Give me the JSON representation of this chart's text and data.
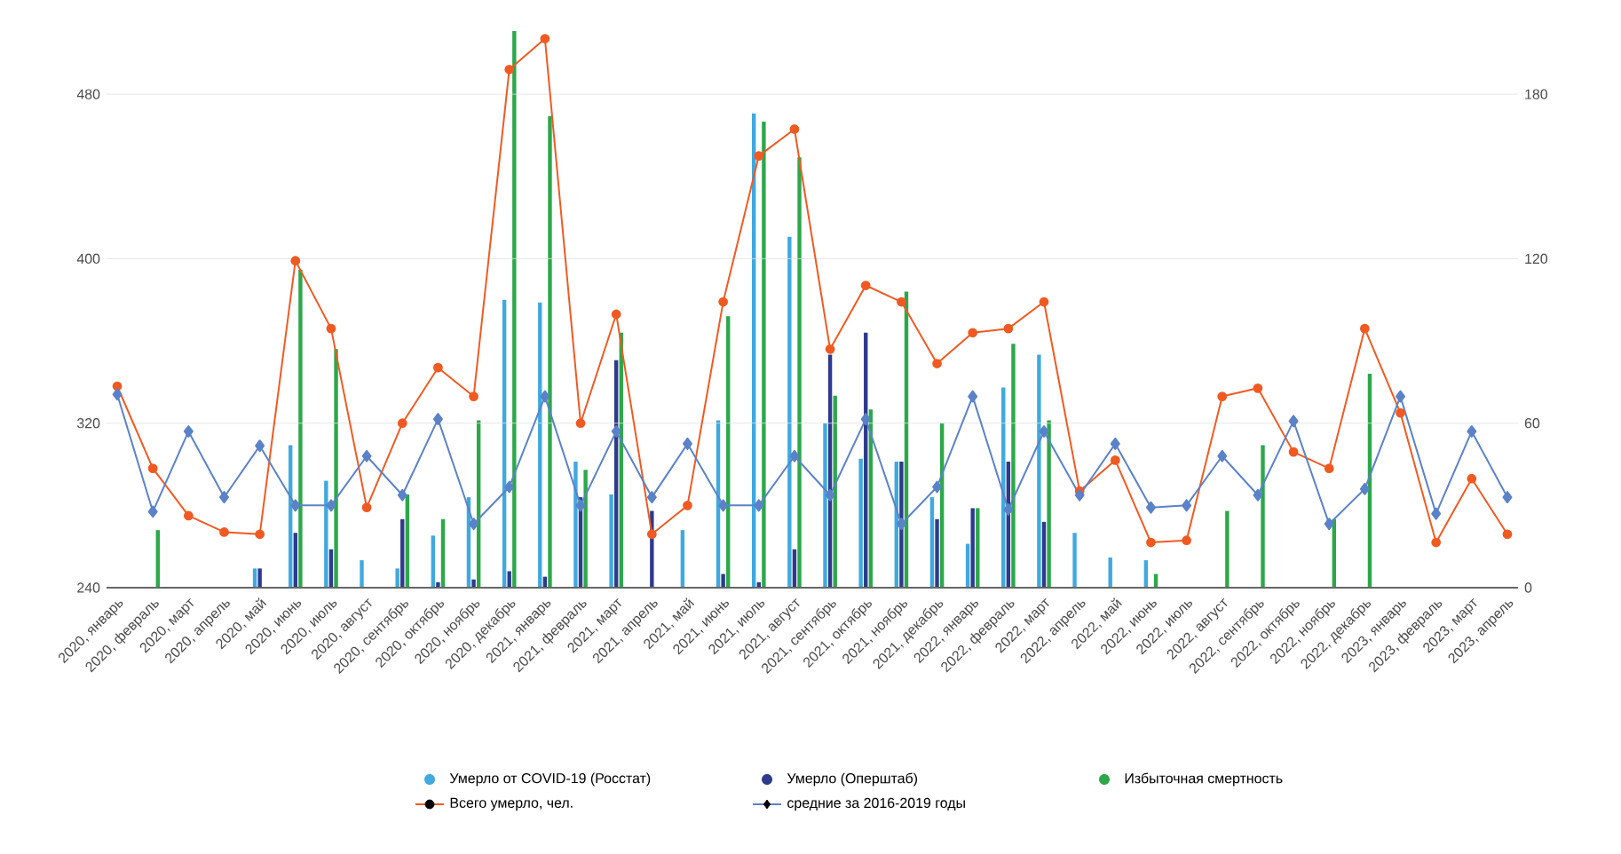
{
  "chart_data": {
    "type": "bar",
    "categories": [
      "2020, январь",
      "2020, февраль",
      "2020, март",
      "2020, апрель",
      "2020, май",
      "2020, июнь",
      "2020, июль",
      "2020, август",
      "2020, сентябрь",
      "2020, октябрь",
      "2020, ноябрь",
      "2020, декабрь",
      "2021, январь",
      "2021, февраль",
      "2021, март",
      "2021, апрель",
      "2021, май",
      "2021, июнь",
      "2021, июль",
      "2021, август",
      "2021, сентябрь",
      "2021, октябрь",
      "2021, ноябрь",
      "2021, декабрь",
      "2022, январь",
      "2022, февраль",
      "2022, март",
      "2022, апрель",
      "2022, май",
      "2022, июнь",
      "2022, июль",
      "2022, август",
      "2022, сентябрь",
      "2022, октябрь",
      "2022, ноябрь",
      "2022, декабрь",
      "2023, январь",
      "2023, февраль",
      "2023, март",
      "2023, апрель"
    ],
    "series": [
      {
        "name": "Умерло от COVID-19 (Росстат)",
        "axis": "y2",
        "color": "#3fa9e0",
        "values": [
          null,
          null,
          null,
          null,
          7,
          52,
          39,
          10,
          7,
          19,
          33,
          105,
          104,
          46,
          34,
          null,
          21,
          61,
          173,
          128,
          60,
          47,
          46,
          33,
          16,
          73,
          85,
          20,
          11,
          10,
          null,
          null,
          null,
          null,
          null,
          null,
          null,
          null,
          null,
          null
        ]
      },
      {
        "name": "Умерло (Оперштаб)",
        "axis": "y2",
        "color": "#2e3a8c",
        "values": [
          null,
          null,
          null,
          null,
          7,
          20,
          14,
          null,
          25,
          2,
          3,
          6,
          4,
          33,
          83,
          28,
          null,
          5,
          2,
          14,
          85,
          93,
          46,
          25,
          29,
          46,
          24,
          null,
          null,
          null,
          null,
          null,
          null,
          null,
          null,
          null,
          null,
          null,
          null,
          null
        ]
      },
      {
        "name": "Избыточная смертность",
        "axis": "y2",
        "color": "#2ca84a",
        "values": [
          null,
          21,
          null,
          null,
          null,
          116,
          87,
          null,
          34,
          25,
          61,
          203,
          172,
          43,
          93,
          null,
          null,
          99,
          170,
          157,
          70,
          65,
          108,
          60,
          29,
          89,
          61,
          null,
          null,
          5,
          null,
          28,
          52,
          null,
          25,
          78,
          null,
          null,
          null,
          null
        ]
      },
      {
        "name": "Всего умерло, чел.",
        "type": "line",
        "axis": "y",
        "color": "#f05a22",
        "marker": "circle",
        "values": [
          338,
          298,
          275,
          267,
          266,
          399,
          366,
          279,
          320,
          347,
          333,
          492,
          507,
          320,
          373,
          266,
          280,
          379,
          450,
          463,
          356,
          387,
          379,
          349,
          364,
          366,
          379,
          287,
          302,
          262,
          263,
          333,
          337,
          306,
          298,
          366,
          325,
          262,
          293,
          266
        ]
      },
      {
        "name": "средние за 2016-2019 годы",
        "type": "line",
        "axis": "y",
        "color": "#5b82c8",
        "marker": "diamond",
        "values": [
          334,
          277,
          316,
          284,
          309,
          280,
          280,
          304,
          285,
          322,
          271,
          289,
          333,
          280,
          316,
          284,
          310,
          280,
          280,
          304,
          285,
          322,
          271,
          289,
          333,
          278,
          316,
          285,
          310,
          279,
          280,
          304,
          285,
          321,
          271,
          288,
          333,
          276,
          316,
          284
        ]
      }
    ],
    "ylim": [
      240,
      512
    ],
    "yticks": [
      240,
      320,
      400,
      480
    ],
    "y2lim": [
      0,
      204
    ],
    "y2ticks": [
      0,
      60,
      120,
      180
    ],
    "grid": "y",
    "legend": "bottom"
  }
}
